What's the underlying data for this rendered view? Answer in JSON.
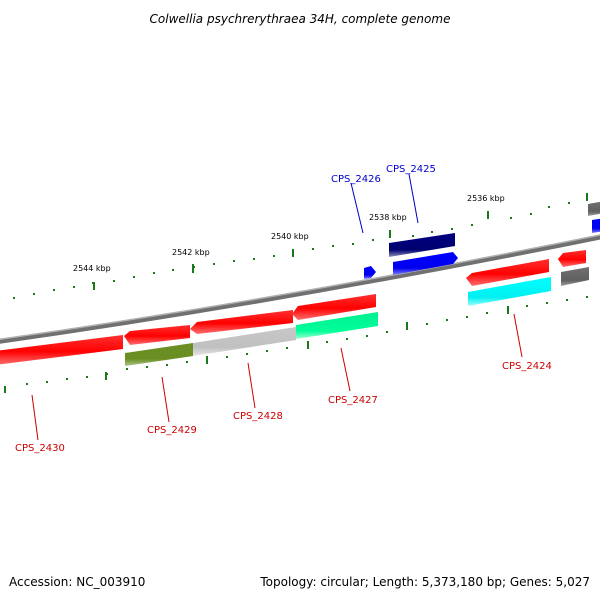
{
  "title": "Colwellia psychrerythraea 34H, complete genome",
  "footer": {
    "accession": "Accession: NC_003910",
    "summary": "Topology: circular; Length: 5,373,180 bp; Genes: 5,027"
  },
  "scale_labels": [
    "2544 kbp",
    "2542 kbp",
    "2540 kbp",
    "2538 kbp",
    "2536 kbp"
  ],
  "gene_labels": [
    {
      "id": "cps2426",
      "text": "CPS_2426",
      "color": "#0000cc"
    },
    {
      "id": "cps2425",
      "text": "CPS_2425",
      "color": "#0000cc"
    },
    {
      "id": "cps2424",
      "text": "CPS_2424",
      "color": "#cc0000"
    },
    {
      "id": "cps2427",
      "text": "CPS_2427",
      "color": "#cc0000"
    },
    {
      "id": "cps2428",
      "text": "CPS_2428",
      "color": "#cc0000"
    },
    {
      "id": "cps2429",
      "text": "CPS_2429",
      "color": "#cc0000"
    },
    {
      "id": "cps2430",
      "text": "CPS_2430",
      "color": "#cc0000"
    }
  ],
  "colors": {
    "cds": "#ff0000",
    "backbone": "#808080",
    "tick": "#1a7a1a",
    "label_red": "#cc0000",
    "label_blue": "#0000cc"
  }
}
